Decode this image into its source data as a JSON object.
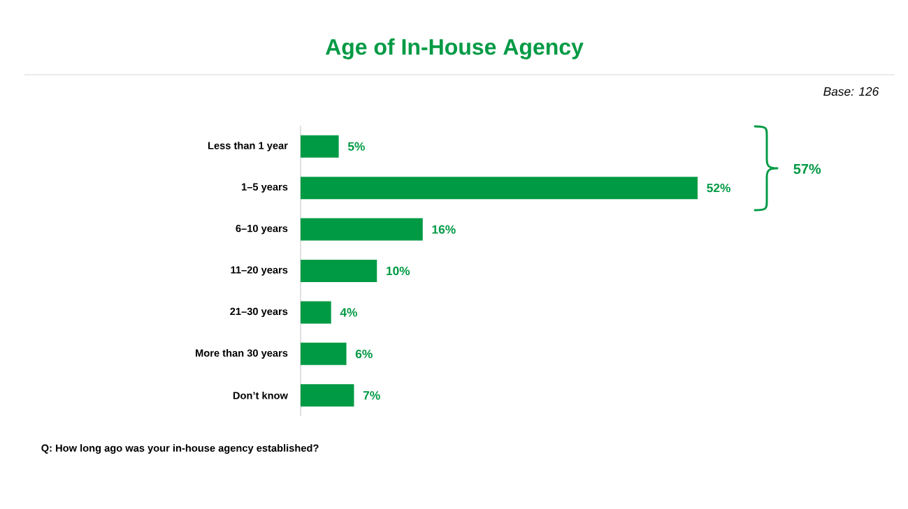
{
  "chart_data": {
    "type": "bar",
    "orientation": "horizontal",
    "title": "Age of In-House Agency",
    "categories": [
      "Less than 1 year",
      "1–5 years",
      "6–10 years",
      "11–20 years",
      "21–30 years",
      "More than 30 years",
      "Don’t know"
    ],
    "values": [
      5,
      52,
      16,
      10,
      4,
      6,
      7
    ],
    "value_labels": [
      "5%",
      "52%",
      "16%",
      "10%",
      "4%",
      "6%",
      "7%"
    ],
    "color": "#009a44",
    "annotations": [
      "Base: 126",
      "Q: How long ago was your in-house agency established?",
      "57%"
    ]
  }
}
